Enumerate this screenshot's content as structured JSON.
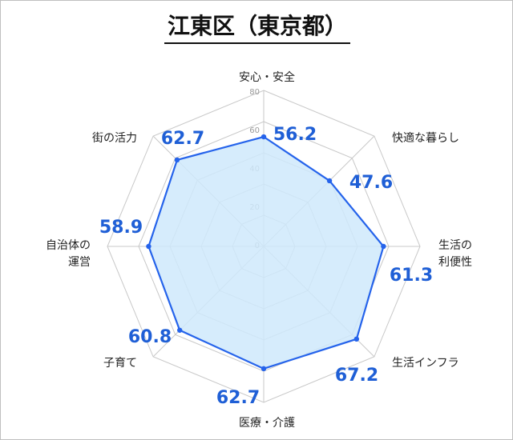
{
  "title": "江東区（東京都）",
  "chart_data": {
    "type": "radar",
    "categories": [
      "安心・安全",
      "快適な暮らし",
      "生活の\n利便性",
      "生活インフラ",
      "医療・介護",
      "子育て",
      "自治体の\n運営",
      "街の活力"
    ],
    "values": [
      56.2,
      47.6,
      61.3,
      67.2,
      62.7,
      60.8,
      58.9,
      62.7
    ],
    "value_labels": [
      "56.2",
      "47.6",
      "61.3",
      "67.2",
      "62.7",
      "60.8",
      "58.9",
      "62.7"
    ],
    "scale_ticks": [
      "0",
      "20",
      "40",
      "60",
      "80"
    ],
    "rmax": 80,
    "grid": true
  },
  "colors": {
    "series_line": "#2563eb",
    "series_fill": "#cfe9fb",
    "value_text": "#1f5fd6",
    "grid": "#c8c8c8"
  }
}
